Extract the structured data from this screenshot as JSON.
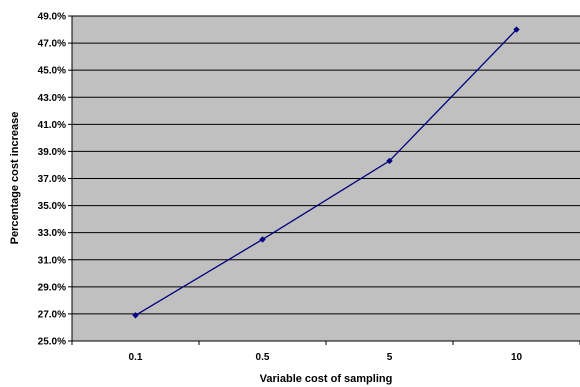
{
  "chart_data": {
    "type": "line",
    "categories": [
      "0.1",
      "0.5",
      "5",
      "10"
    ],
    "series": [
      {
        "values": [
          26.9,
          32.5,
          38.3,
          48.0
        ]
      }
    ],
    "xlabel": "Variable cost of sampling",
    "ylabel": "Percentage cost increase",
    "ylim": [
      25.0,
      49.0
    ],
    "yticks": [
      "25.0%",
      "27.0%",
      "29.0%",
      "31.0%",
      "33.0%",
      "35.0%",
      "37.0%",
      "39.0%",
      "41.0%",
      "43.0%",
      "45.0%",
      "47.0%",
      "49.0%"
    ],
    "grid": true,
    "legend": "none",
    "colors": {
      "plot_background": "#c0c0c0",
      "line": "#000080",
      "gridline": "#000000"
    }
  }
}
